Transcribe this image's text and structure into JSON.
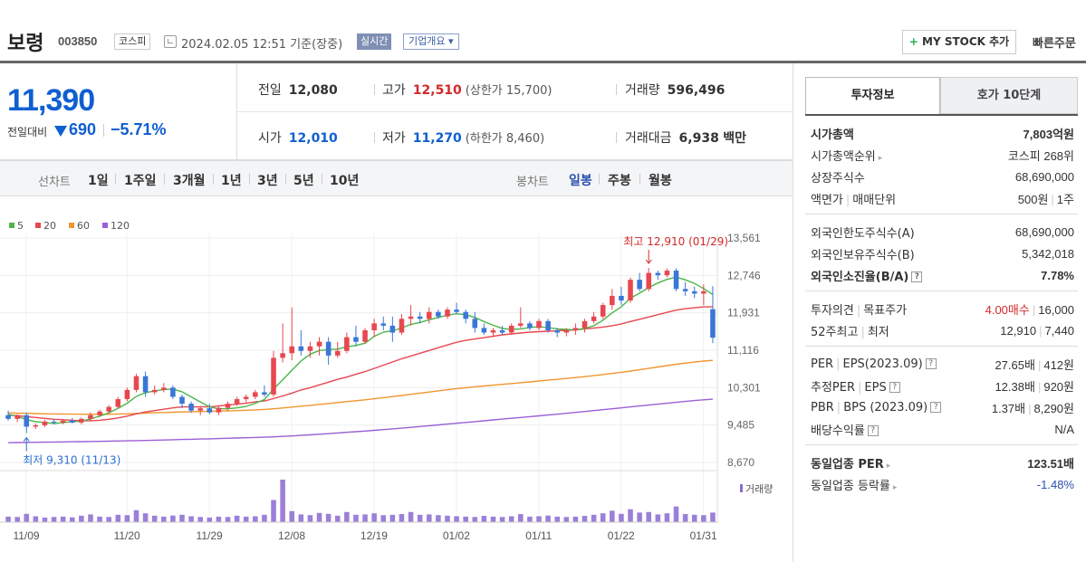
{
  "header": {
    "name": "보령",
    "code": "003850",
    "market": "코스피",
    "timestamp": "2024.02.05 12:51 기준(장중)",
    "realtime": "실시간",
    "company_info": "기업개요 ▾",
    "mystock": "MY STOCK 추가",
    "quick_order": "빠른주문"
  },
  "price": {
    "current": "11,390",
    "change_label": "전일대비",
    "change": "690",
    "change_pct": "−5.71%"
  },
  "stats": {
    "prev_label": "전일",
    "prev": "12,080",
    "high_label": "고가",
    "high": "12,510",
    "upper_limit": "(상한가 15,700)",
    "volume_label": "거래량",
    "volume": "596,496",
    "open_label": "시가",
    "open": "12,010",
    "low_label": "저가",
    "low": "11,270",
    "lower_limit": "(하한가 8,460)",
    "amount_label": "거래대금",
    "amount": "6,938",
    "amount_unit": "백만"
  },
  "period_bar": {
    "line_label": "선차트",
    "line_items": [
      "1일",
      "1주일",
      "3개월",
      "1년",
      "3년",
      "5년",
      "10년"
    ],
    "candle_label": "봉차트",
    "candle_items": [
      "일봉",
      "주봉",
      "월봉"
    ],
    "active_candle": 0
  },
  "chart_data": {
    "type": "candlestick",
    "legend": [
      {
        "name": "5",
        "color": "#4cb648"
      },
      {
        "name": "20",
        "color": "#e8474f"
      },
      {
        "name": "60",
        "color": "#f0962f"
      },
      {
        "name": "120",
        "color": "#9b5fd6"
      }
    ],
    "y_ticks": [
      "13,561",
      "12,746",
      "11,931",
      "11,116",
      "10,301",
      "9,485",
      "8,670"
    ],
    "ylim": [
      8670,
      13561
    ],
    "x_ticks": [
      "11/09",
      "11/20",
      "11/29",
      "12/08",
      "12/19",
      "01/02",
      "01/11",
      "01/22",
      "01/31"
    ],
    "high_annotation": "최고 12,910 (01/29)",
    "low_annotation": "최저 9,310 (11/13)",
    "volume_label": "거래량",
    "up_color": "#e8474f",
    "down_color": "#3a76d8",
    "candles": [
      [
        9700,
        9800,
        9580,
        9620
      ],
      [
        9620,
        9720,
        9550,
        9700
      ],
      [
        9700,
        9760,
        9310,
        9450
      ],
      [
        9450,
        9520,
        9400,
        9480
      ],
      [
        9480,
        9600,
        9440,
        9560
      ],
      [
        9560,
        9620,
        9500,
        9540
      ],
      [
        9540,
        9620,
        9500,
        9580
      ],
      [
        9580,
        9640,
        9520,
        9540
      ],
      [
        9540,
        9650,
        9500,
        9620
      ],
      [
        9620,
        9760,
        9580,
        9700
      ],
      [
        9700,
        9820,
        9660,
        9780
      ],
      [
        9780,
        9920,
        9740,
        9880
      ],
      [
        9880,
        10100,
        9850,
        10050
      ],
      [
        10050,
        10300,
        10000,
        10250
      ],
      [
        10250,
        10600,
        10200,
        10550
      ],
      [
        10550,
        10650,
        10100,
        10200
      ],
      [
        10200,
        10350,
        10150,
        10250
      ],
      [
        10250,
        10400,
        10200,
        10300
      ],
      [
        10300,
        10350,
        10050,
        10100
      ],
      [
        10100,
        10150,
        9850,
        9950
      ],
      [
        9950,
        10000,
        9750,
        9800
      ],
      [
        9800,
        9900,
        9700,
        9850
      ],
      [
        9850,
        9950,
        9720,
        9760
      ],
      [
        9760,
        9900,
        9700,
        9860
      ],
      [
        9860,
        10000,
        9800,
        9950
      ],
      [
        9950,
        10100,
        9900,
        10050
      ],
      [
        10050,
        10150,
        9980,
        10100
      ],
      [
        10100,
        10250,
        10050,
        10200
      ],
      [
        10200,
        10350,
        10100,
        10150
      ],
      [
        10150,
        11100,
        10100,
        10950
      ],
      [
        10950,
        11700,
        10850,
        11050
      ],
      [
        11050,
        12050,
        10900,
        11200
      ],
      [
        11200,
        11550,
        11000,
        11100
      ],
      [
        11100,
        11300,
        10950,
        11200
      ],
      [
        11200,
        11400,
        11000,
        11300
      ],
      [
        11300,
        11400,
        10800,
        11000
      ],
      [
        11000,
        11300,
        10950,
        11100
      ],
      [
        11100,
        11500,
        11050,
        11400
      ],
      [
        11400,
        11650,
        11200,
        11300
      ],
      [
        11300,
        11600,
        11250,
        11550
      ],
      [
        11550,
        11800,
        11400,
        11700
      ],
      [
        11700,
        11850,
        11550,
        11650
      ],
      [
        11650,
        11850,
        11300,
        11500
      ],
      [
        11500,
        11900,
        11450,
        11800
      ],
      [
        11800,
        12100,
        11650,
        11850
      ],
      [
        11850,
        11950,
        11700,
        11800
      ],
      [
        11800,
        12050,
        11700,
        11950
      ],
      [
        11950,
        12000,
        11800,
        11850
      ],
      [
        11850,
        12050,
        11800,
        12000
      ],
      [
        12000,
        12150,
        11900,
        11950
      ],
      [
        11950,
        12000,
        11700,
        11800
      ],
      [
        11800,
        11950,
        11500,
        11600
      ],
      [
        11600,
        11700,
        11450,
        11500
      ],
      [
        11500,
        11600,
        11400,
        11550
      ],
      [
        11550,
        11650,
        11450,
        11500
      ],
      [
        11500,
        11700,
        11450,
        11650
      ],
      [
        11650,
        12050,
        11600,
        11700
      ],
      [
        11700,
        11750,
        11550,
        11600
      ],
      [
        11600,
        11800,
        11550,
        11750
      ],
      [
        11750,
        11800,
        11500,
        11550
      ],
      [
        11550,
        11600,
        11400,
        11500
      ],
      [
        11500,
        11600,
        11420,
        11550
      ],
      [
        11550,
        11700,
        11450,
        11600
      ],
      [
        11600,
        11800,
        11500,
        11750
      ],
      [
        11750,
        11950,
        11700,
        11850
      ],
      [
        11850,
        12150,
        11800,
        12100
      ],
      [
        12100,
        12450,
        12000,
        12300
      ],
      [
        12300,
        12500,
        12100,
        12200
      ],
      [
        12200,
        12700,
        12150,
        12650
      ],
      [
        12650,
        12800,
        12400,
        12450
      ],
      [
        12450,
        12910,
        12400,
        12800
      ],
      [
        12800,
        12850,
        12650,
        12750
      ],
      [
        12750,
        12900,
        12700,
        12850
      ],
      [
        12850,
        12900,
        12400,
        12450
      ],
      [
        12450,
        12600,
        12300,
        12400
      ],
      [
        12400,
        12500,
        12250,
        12350
      ],
      [
        12350,
        12550,
        12100,
        12400
      ],
      [
        12010,
        12510,
        11270,
        11390
      ]
    ],
    "ma5": [
      9720,
      9680,
      9600,
      9560,
      9540,
      9520,
      9540,
      9560,
      9570,
      9620,
      9680,
      9750,
      9850,
      9960,
      10110,
      10190,
      10230,
      10260,
      10270,
      10210,
      10100,
      9990,
      9880,
      9840,
      9840,
      9860,
      9890,
      9960,
      10040,
      10270,
      10470,
      10680,
      10880,
      11030,
      11110,
      11130,
      11140,
      11190,
      11220,
      11270,
      11420,
      11510,
      11540,
      11600,
      11680,
      11720,
      11780,
      11830,
      11880,
      11910,
      11890,
      11830,
      11740,
      11660,
      11590,
      11570,
      11580,
      11610,
      11630,
      11610,
      11580,
      11570,
      11560,
      11590,
      11650,
      11770,
      11930,
      12060,
      12250,
      12360,
      12480,
      12580,
      12660,
      12710,
      12650,
      12570,
      12460,
      12330
    ],
    "ma20": [
      9700,
      9690,
      9670,
      9650,
      9630,
      9610,
      9600,
      9590,
      9580,
      9580,
      9590,
      9610,
      9640,
      9680,
      9730,
      9770,
      9800,
      9830,
      9860,
      9880,
      9880,
      9880,
      9880,
      9900,
      9920,
      9940,
      9960,
      9990,
      10010,
      10060,
      10120,
      10180,
      10250,
      10300,
      10360,
      10420,
      10480,
      10530,
      10590,
      10650,
      10720,
      10790,
      10860,
      10930,
      10990,
      11050,
      11110,
      11170,
      11230,
      11290,
      11330,
      11360,
      11390,
      11420,
      11450,
      11470,
      11490,
      11510,
      11520,
      11530,
      11540,
      11550,
      11560,
      11580,
      11600,
      11620,
      11650,
      11690,
      11740,
      11790,
      11840,
      11890,
      11940,
      11990,
      12020,
      12040,
      12060,
      12060
    ],
    "ma60": [
      9750,
      9745,
      9740,
      9735,
      9730,
      9728,
      9726,
      9724,
      9722,
      9720,
      9720,
      9722,
      9725,
      9730,
      9738,
      9745,
      9752,
      9758,
      9765,
      9770,
      9775,
      9780,
      9785,
      9790,
      9795,
      9800,
      9808,
      9816,
      9825,
      9840,
      9858,
      9876,
      9896,
      9915,
      9935,
      9955,
      9975,
      9995,
      10015,
      10035,
      10058,
      10082,
      10106,
      10130,
      10155,
      10180,
      10205,
      10230,
      10255,
      10280,
      10300,
      10318,
      10336,
      10354,
      10372,
      10390,
      10408,
      10426,
      10444,
      10462,
      10480,
      10500,
      10520,
      10540,
      10562,
      10585,
      10610,
      10635,
      10662,
      10690,
      10720,
      10750,
      10780,
      10810,
      10835,
      10858,
      10878,
      10895
    ],
    "ma120": [
      9100,
      9103,
      9106,
      9109,
      9112,
      9115,
      9118,
      9121,
      9124,
      9127,
      9130,
      9134,
      9138,
      9142,
      9146,
      9150,
      9155,
      9160,
      9165,
      9170,
      9175,
      9180,
      9185,
      9190,
      9196,
      9202,
      9208,
      9214,
      9220,
      9228,
      9238,
      9248,
      9260,
      9272,
      9285,
      9298,
      9312,
      9326,
      9340,
      9355,
      9370,
      9386,
      9402,
      9418,
      9435,
      9452,
      9470,
      9488,
      9506,
      9524,
      9542,
      9560,
      9578,
      9596,
      9614,
      9632,
      9650,
      9668,
      9686,
      9704,
      9722,
      9740,
      9760,
      9780,
      9800,
      9820,
      9840,
      9860,
      9880,
      9900,
      9920,
      9940,
      9960,
      9980,
      10000,
      10018,
      10034,
      10048
    ],
    "volume": [
      30,
      28,
      45,
      32,
      25,
      28,
      30,
      26,
      35,
      42,
      30,
      28,
      40,
      38,
      65,
      48,
      35,
      30,
      36,
      40,
      32,
      28,
      25,
      30,
      28,
      35,
      30,
      32,
      40,
      120,
      230,
      60,
      42,
      38,
      50,
      45,
      35,
      55,
      40,
      42,
      48,
      38,
      40,
      44,
      55,
      40,
      42,
      38,
      35,
      32,
      30,
      28,
      34,
      30,
      28,
      32,
      44,
      30,
      32,
      36,
      30,
      28,
      30,
      34,
      40,
      48,
      62,
      45,
      70,
      52,
      55,
      42,
      48,
      85,
      44,
      40,
      38,
      52
    ]
  },
  "right": {
    "tab_active": "투자정보",
    "tab_inactive": "호가 10단계",
    "g1": {
      "mcap_k": "시가총액",
      "mcap_v": "7,803억원",
      "rank_k": "시가총액순위",
      "rank_v": "코스피 268위",
      "shares_k": "상장주식수",
      "shares_v": "68,690,000",
      "par_k1": "액면가",
      "par_k2": "매매단위",
      "par_v1": "500원",
      "par_v2": "1주"
    },
    "g2": {
      "flimit_k": "외국인한도주식수(A)",
      "flimit_v": "68,690,000",
      "fhold_k": "외국인보유주식수(B)",
      "fhold_v": "5,342,018",
      "fratio_k": "외국인소진율(B/A)",
      "fratio_v": "7.78%"
    },
    "g3": {
      "opinion_k1": "투자의견",
      "opinion_k2": "목표주가",
      "opinion_v1": "4.00매수",
      "opinion_v2": "16,000",
      "w52_k1": "52주최고",
      "w52_k2": "최저",
      "w52_v1": "12,910",
      "w52_v2": "7,440"
    },
    "g4": {
      "per_k1": "PER",
      "per_k2": "EPS(2023.09)",
      "per_v1": "27.65배",
      "per_v2": "412원",
      "eper_k1": "추정PER",
      "eper_k2": "EPS",
      "eper_v1": "12.38배",
      "eper_v2": "920원",
      "pbr_k1": "PBR",
      "pbr_k2": "BPS (2023.09)",
      "pbr_v1": "1.37배",
      "pbr_v2": "8,290원",
      "div_k": "배당수익률",
      "div_v": "N/A"
    },
    "g5": {
      "iper_k": "동일업종 PER",
      "iper_v": "123.51배",
      "irate_k": "동일업종 등락률",
      "irate_v": "-1.48%"
    }
  }
}
